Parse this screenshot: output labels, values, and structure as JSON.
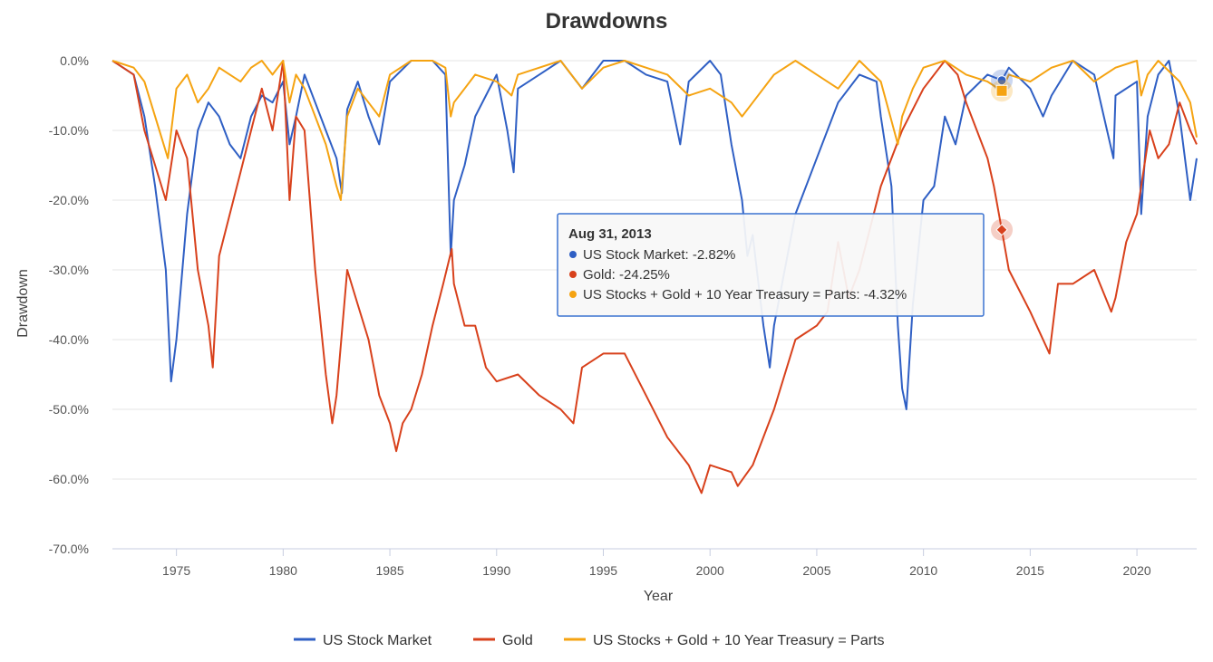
{
  "chart_data": {
    "type": "line",
    "title": "Drawdowns",
    "xlabel": "Year",
    "ylabel": "Drawdown",
    "xlim": [
      1972,
      2022.8
    ],
    "ylim": [
      -70,
      0
    ],
    "x_ticks": [
      1975,
      1980,
      1985,
      1990,
      1995,
      2000,
      2005,
      2010,
      2015,
      2020
    ],
    "y_ticks": [
      0,
      -10,
      -20,
      -30,
      -40,
      -50,
      -60,
      -70
    ],
    "y_tick_labels": [
      "0.0%",
      "-10.0%",
      "-20.0%",
      "-30.0%",
      "-40.0%",
      "-50.0%",
      "-60.0%",
      "-70.0%"
    ],
    "grid": "horizontal",
    "legend_position": "bottom-center",
    "series": [
      {
        "name": "US Stock Market",
        "color": "#2f5fc4",
        "x": [
          1972.0,
          1973.0,
          1973.5,
          1974.0,
          1974.5,
          1974.75,
          1975.0,
          1975.5,
          1976.0,
          1976.5,
          1977.0,
          1977.5,
          1978.0,
          1978.5,
          1979.0,
          1979.5,
          1980.0,
          1980.3,
          1980.6,
          1981.0,
          1981.5,
          1982.0,
          1982.5,
          1982.75,
          1983.0,
          1983.5,
          1984.0,
          1984.5,
          1985.0,
          1986.0,
          1987.0,
          1987.6,
          1987.85,
          1988.0,
          1988.5,
          1989.0,
          1989.5,
          1990.0,
          1990.5,
          1990.8,
          1991.0,
          1992.0,
          1993.0,
          1994.0,
          1995.0,
          1996.0,
          1997.0,
          1998.0,
          1998.6,
          1999.0,
          2000.0,
          2000.5,
          2001.0,
          2001.5,
          2001.75,
          2002.0,
          2002.5,
          2002.8,
          2003.0,
          2003.5,
          2004.0,
          2005.0,
          2006.0,
          2007.0,
          2007.8,
          2008.0,
          2008.5,
          2008.8,
          2009.0,
          2009.2,
          2009.5,
          2010.0,
          2010.5,
          2011.0,
          2011.5,
          2012.0,
          2013.0,
          2013.67,
          2014.0,
          2015.0,
          2015.6,
          2016.0,
          2017.0,
          2018.0,
          2018.9,
          2019.0,
          2020.0,
          2020.2,
          2020.5,
          2021.0,
          2021.5,
          2022.0,
          2022.5,
          2022.8
        ],
        "y": [
          0,
          -2,
          -8,
          -18,
          -30,
          -46,
          -40,
          -22,
          -10,
          -6,
          -8,
          -12,
          -14,
          -8,
          -5,
          -6,
          -3,
          -12,
          -8,
          -2,
          -6,
          -10,
          -14,
          -19,
          -7,
          -3,
          -8,
          -12,
          -3,
          0,
          0,
          -2,
          -28,
          -20,
          -15,
          -8,
          -5,
          -2,
          -10,
          -16,
          -4,
          -2,
          0,
          -4,
          0,
          0,
          -2,
          -3,
          -12,
          -3,
          0,
          -2,
          -12,
          -20,
          -28,
          -25,
          -38,
          -44,
          -38,
          -30,
          -22,
          -14,
          -6,
          -2,
          -3,
          -8,
          -18,
          -38,
          -47,
          -50,
          -35,
          -20,
          -18,
          -8,
          -12,
          -5,
          -2,
          -2.82,
          -1,
          -4,
          -8,
          -5,
          0,
          -2,
          -14,
          -5,
          -3,
          -22,
          -8,
          -2,
          0,
          -8,
          -20,
          -14
        ]
      },
      {
        "name": "Gold",
        "color": "#d8411c",
        "x": [
          1972.0,
          1973.0,
          1973.5,
          1974.0,
          1974.5,
          1975.0,
          1975.5,
          1976.0,
          1976.5,
          1976.7,
          1977.0,
          1977.5,
          1978.0,
          1978.5,
          1979.0,
          1979.5,
          1980.0,
          1980.3,
          1980.6,
          1981.0,
          1981.5,
          1982.0,
          1982.3,
          1982.5,
          1983.0,
          1983.5,
          1984.0,
          1984.5,
          1985.0,
          1985.3,
          1985.6,
          1986.0,
          1986.5,
          1987.0,
          1987.5,
          1987.9,
          1988.0,
          1988.5,
          1989.0,
          1989.5,
          1990.0,
          1991.0,
          1992.0,
          1993.0,
          1993.6,
          1994.0,
          1995.0,
          1996.0,
          1997.0,
          1998.0,
          1999.0,
          1999.6,
          2000.0,
          2001.0,
          2001.3,
          2002.0,
          2003.0,
          2004.0,
          2005.0,
          2005.5,
          2006.0,
          2006.5,
          2007.0,
          2008.0,
          2009.0,
          2010.0,
          2011.0,
          2011.6,
          2012.0,
          2012.5,
          2013.0,
          2013.3,
          2013.67,
          2014.0,
          2015.0,
          2015.9,
          2016.3,
          2017.0,
          2018.0,
          2018.8,
          2019.0,
          2019.5,
          2020.0,
          2020.6,
          2021.0,
          2021.5,
          2022.0,
          2022.5,
          2022.8
        ],
        "y": [
          0,
          -2,
          -10,
          -15,
          -20,
          -10,
          -14,
          -30,
          -38,
          -44,
          -28,
          -22,
          -16,
          -10,
          -4,
          -10,
          0,
          -20,
          -8,
          -10,
          -30,
          -45,
          -52,
          -48,
          -30,
          -35,
          -40,
          -48,
          -52,
          -56,
          -52,
          -50,
          -45,
          -38,
          -32,
          -27,
          -32,
          -38,
          -38,
          -44,
          -46,
          -45,
          -48,
          -50,
          -52,
          -44,
          -42,
          -42,
          -48,
          -54,
          -58,
          -62,
          -58,
          -59,
          -61,
          -58,
          -50,
          -40,
          -38,
          -36,
          -26,
          -34,
          -30,
          -18,
          -10,
          -4,
          0,
          -2,
          -6,
          -10,
          -14,
          -18,
          -24.25,
          -30,
          -36,
          -42,
          -32,
          -32,
          -30,
          -36,
          -34,
          -26,
          -22,
          -10,
          -14,
          -12,
          -6,
          -10,
          -12
        ]
      },
      {
        "name": "US Stocks + Gold + 10 Year Treasury = Parts",
        "color": "#f5a311",
        "x": [
          1972.0,
          1973.0,
          1973.5,
          1974.0,
          1974.6,
          1975.0,
          1975.5,
          1976.0,
          1976.5,
          1977.0,
          1977.5,
          1978.0,
          1978.5,
          1979.0,
          1979.5,
          1980.0,
          1980.3,
          1980.6,
          1981.0,
          1981.5,
          1982.0,
          1982.5,
          1982.7,
          1983.0,
          1983.5,
          1984.0,
          1984.5,
          1985.0,
          1986.0,
          1987.0,
          1987.6,
          1987.85,
          1988.0,
          1988.5,
          1989.0,
          1990.0,
          1990.7,
          1991.0,
          1992.0,
          1993.0,
          1994.0,
          1995.0,
          1996.0,
          1997.0,
          1998.0,
          1999.0,
          2000.0,
          2001.0,
          2001.5,
          2002.0,
          2003.0,
          2004.0,
          2005.0,
          2006.0,
          2007.0,
          2008.0,
          2008.8,
          2009.0,
          2009.5,
          2010.0,
          2011.0,
          2012.0,
          2013.0,
          2013.67,
          2014.0,
          2015.0,
          2016.0,
          2017.0,
          2018.0,
          2019.0,
          2020.0,
          2020.2,
          2020.5,
          2021.0,
          2022.0,
          2022.5,
          2022.8
        ],
        "y": [
          0,
          -1,
          -3,
          -8,
          -14,
          -4,
          -2,
          -6,
          -4,
          -1,
          -2,
          -3,
          -1,
          0,
          -2,
          0,
          -6,
          -2,
          -4,
          -8,
          -12,
          -18,
          -20,
          -8,
          -4,
          -6,
          -8,
          -2,
          0,
          0,
          -1,
          -8,
          -6,
          -4,
          -2,
          -3,
          -5,
          -2,
          -1,
          0,
          -4,
          -1,
          0,
          -1,
          -2,
          -5,
          -4,
          -6,
          -8,
          -6,
          -2,
          0,
          -2,
          -4,
          0,
          -3,
          -12,
          -8,
          -4,
          -1,
          0,
          -2,
          -3,
          -4.32,
          -2,
          -3,
          -1,
          0,
          -3,
          -1,
          0,
          -5,
          -2,
          0,
          -3,
          -6,
          -11
        ]
      }
    ],
    "tooltip": {
      "date": "Aug 31, 2013",
      "rows": [
        {
          "label": "US Stock Market: -2.82%",
          "color": "#2f5fc4"
        },
        {
          "label": "Gold: -24.25%",
          "color": "#d8411c"
        },
        {
          "label": "US Stocks + Gold + 10 Year Treasury = Parts: -4.32%",
          "color": "#f5a311"
        }
      ],
      "hover_x": 2013.67
    }
  }
}
